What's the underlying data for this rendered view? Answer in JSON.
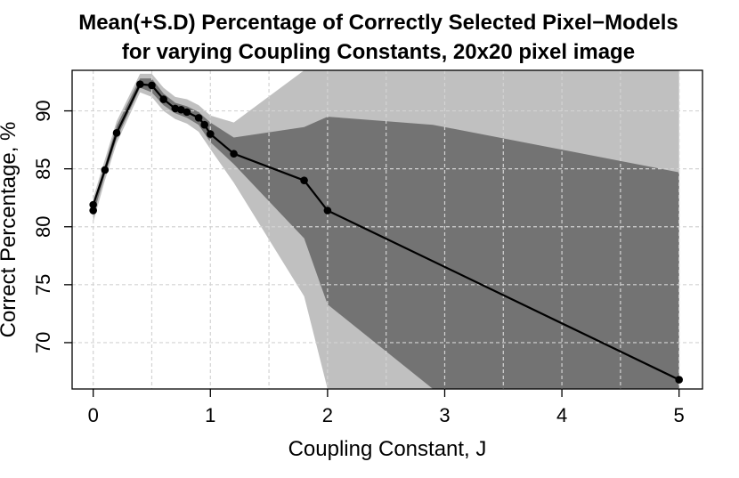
{
  "chart_data": {
    "type": "line",
    "title": "Mean(+S.D) Percentage of Correctly Selected Pixel−Models",
    "subtitle": "for varying Coupling Constants, 20x20 pixel image",
    "xlabel": "Coupling Constant, J",
    "ylabel": "Correct Percentage, %",
    "xlim": [
      -0.18,
      5.2
    ],
    "ylim": [
      66.0,
      93.5
    ],
    "xticks": [
      "0",
      "1",
      "2",
      "3",
      "4",
      "5"
    ],
    "yticks": [
      "70",
      "75",
      "80",
      "85",
      "90"
    ],
    "grid": true,
    "colors": {
      "outer_band": "#c0c0c0",
      "inner_band": "#737373",
      "line": "#000000",
      "grid": "#d3d3d3"
    },
    "series": [
      {
        "name": "mean",
        "x": [
          0.0,
          0.0,
          0.1,
          0.2,
          0.4,
          0.5,
          0.6,
          0.7,
          0.75,
          0.8,
          0.9,
          0.95,
          1.0,
          1.2,
          1.8,
          2.0,
          5.0
        ],
        "y": [
          81.4,
          81.9,
          84.9,
          88.1,
          92.3,
          92.2,
          91.0,
          90.2,
          90.1,
          89.9,
          89.4,
          88.8,
          88.0,
          86.3,
          84.0,
          81.4,
          66.8
        ]
      }
    ],
    "bands": [
      {
        "name": "outer_band",
        "x": [
          0.0,
          0.1,
          0.2,
          0.4,
          0.5,
          0.6,
          0.7,
          0.8,
          0.9,
          1.0,
          1.2,
          1.8,
          2.0,
          2.9,
          5.0
        ],
        "upper": [
          82.5,
          85.8,
          89.1,
          93.2,
          93.2,
          92.0,
          91.2,
          91.0,
          90.5,
          89.6,
          89.0,
          93.5,
          93.5,
          93.5,
          93.5
        ],
        "lower": [
          80.4,
          84.0,
          87.2,
          91.6,
          91.2,
          90.0,
          89.3,
          88.9,
          88.2,
          86.7,
          83.8,
          74.0,
          66.0,
          66.0,
          66.0
        ]
      },
      {
        "name": "inner_band",
        "x": [
          0.0,
          0.1,
          0.2,
          0.4,
          0.5,
          0.6,
          0.7,
          0.8,
          0.9,
          1.0,
          1.2,
          1.8,
          2.0,
          2.9,
          5.0
        ],
        "upper": [
          82.0,
          85.3,
          88.7,
          92.8,
          92.8,
          91.5,
          90.7,
          90.4,
          89.9,
          89.0,
          87.7,
          88.6,
          89.5,
          88.8,
          84.7
        ],
        "lower": [
          81.0,
          84.5,
          87.6,
          92.0,
          91.6,
          90.5,
          89.8,
          89.4,
          88.8,
          87.3,
          85.4,
          79.0,
          73.3,
          66.0,
          66.0
        ]
      }
    ]
  }
}
